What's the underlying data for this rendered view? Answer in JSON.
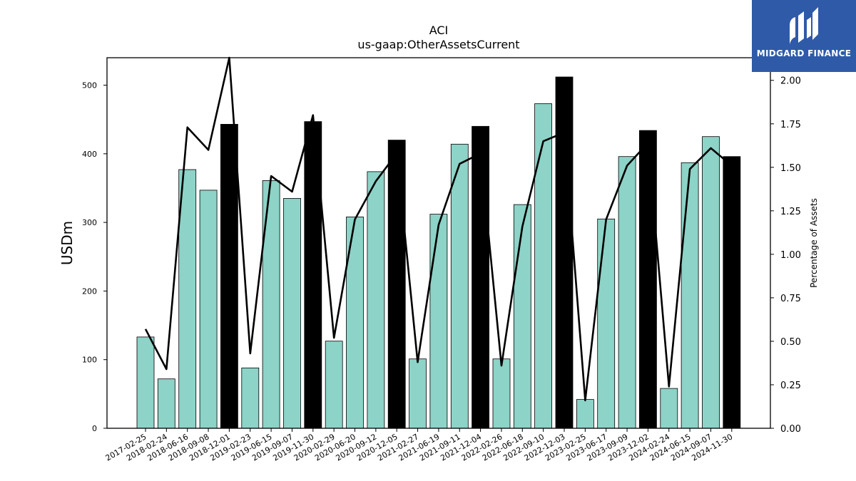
{
  "chart_data": {
    "type": "bar",
    "title": "ACI",
    "subtitle": "us-gaap:OtherAssetsCurrent",
    "ylabel": "USDm",
    "y2label": "Percentage of Assets",
    "ylim": [
      0,
      540
    ],
    "y2lim": [
      0,
      2.13
    ],
    "yticks": [
      0,
      100,
      200,
      300,
      400,
      500
    ],
    "y2ticks": [
      "0.00",
      "0.25",
      "0.50",
      "0.75",
      "1.00",
      "1.25",
      "1.50",
      "1.75",
      "2.00"
    ],
    "categories": [
      "2017-02-25",
      "2018-02-24",
      "2018-06-16",
      "2018-09-08",
      "2018-12-01",
      "2019-02-23",
      "2019-06-15",
      "2019-09-07",
      "2019-11-30",
      "2020-02-29",
      "2020-06-20",
      "2020-09-12",
      "2020-12-05",
      "2021-02-27",
      "2021-06-19",
      "2021-09-11",
      "2021-12-04",
      "2022-02-26",
      "2022-06-18",
      "2022-09-10",
      "2022-12-03",
      "2023-02-25",
      "2023-06-17",
      "2023-09-09",
      "2023-12-02",
      "2024-02-24",
      "2024-06-15",
      "2024-09-07",
      "2024-11-30"
    ],
    "values": [
      133,
      72,
      377,
      347,
      443,
      88,
      361,
      335,
      447,
      127,
      308,
      374,
      420,
      101,
      312,
      414,
      440,
      101,
      326,
      473,
      512,
      42,
      305,
      396,
      434,
      58,
      387,
      425,
      396
    ],
    "highlighted": [
      false,
      false,
      false,
      false,
      true,
      false,
      false,
      false,
      true,
      false,
      false,
      false,
      true,
      false,
      false,
      false,
      true,
      false,
      false,
      false,
      true,
      false,
      false,
      false,
      true,
      false,
      false,
      false,
      true
    ],
    "pct_assets": [
      0.57,
      0.34,
      1.73,
      1.6,
      2.13,
      0.43,
      1.45,
      1.36,
      1.8,
      0.52,
      1.2,
      1.42,
      1.58,
      0.38,
      1.17,
      1.52,
      1.58,
      0.36,
      1.16,
      1.65,
      1.7,
      0.16,
      1.2,
      1.51,
      1.64,
      0.24,
      1.49,
      1.61,
      1.51
    ],
    "colors": {
      "bar": "#8dd3c7",
      "highlight": "#000000",
      "line": "#000000"
    },
    "grid": false
  },
  "logo": {
    "text": "MIDGARD FINANCE",
    "background": "#2f5aa8"
  }
}
